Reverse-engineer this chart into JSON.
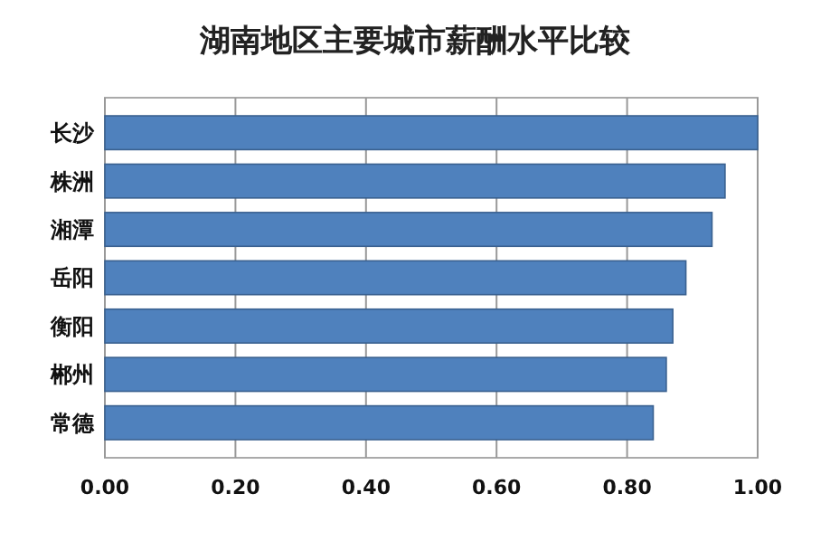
{
  "chart_data": {
    "type": "bar",
    "orientation": "horizontal",
    "title": "湖南地区主要城市薪酬水平比较",
    "categories": [
      "长沙",
      "株洲",
      "湘潭",
      "岳阳",
      "衡阳",
      "郴州",
      "常德"
    ],
    "values": [
      1.0,
      0.95,
      0.93,
      0.89,
      0.87,
      0.86,
      0.84
    ],
    "color": "#4f81bd",
    "xlim": [
      0,
      1
    ],
    "xticks": [
      {
        "value": 0,
        "label": "0.00"
      },
      {
        "value": 0.2,
        "label": "0.20"
      },
      {
        "value": 0.4,
        "label": "0.40"
      },
      {
        "value": 0.6,
        "label": "0.60"
      },
      {
        "value": 0.8,
        "label": "0.80"
      },
      {
        "value": 1,
        "label": "1.00"
      }
    ],
    "grid": "x"
  }
}
